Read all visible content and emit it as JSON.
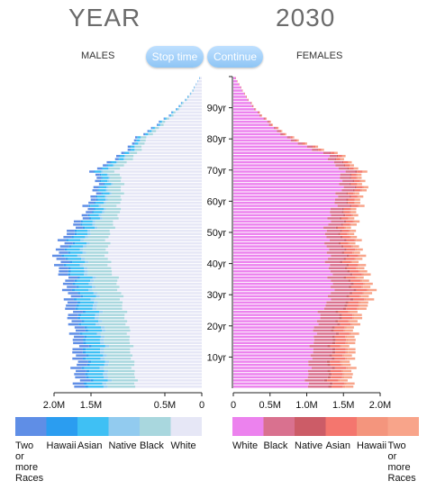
{
  "header": {
    "year_label": "YEAR",
    "year_value": "2030",
    "males_label": "MALES",
    "females_label": "FEMALES",
    "stop_button": "Stop time",
    "continue_button": "Continue"
  },
  "colors": {
    "button_bg": "#9dcff8"
  },
  "chart_data": {
    "type": "bar",
    "subtype": "population-pyramid-stacked",
    "year": "2030",
    "ages_per_bar": 1,
    "age_range": [
      0,
      100
    ],
    "age_ticks": [
      "10yr",
      "20yr",
      "30yr",
      "40yr",
      "50yr",
      "60yr",
      "70yr",
      "80yr",
      "90yr"
    ],
    "age_tick_values": [
      10,
      20,
      30,
      40,
      50,
      60,
      70,
      80,
      90
    ],
    "males": {
      "axis_ticks": [
        "2.0M",
        "1.5M",
        "0.5M",
        "0"
      ],
      "axis_tick_values": [
        2000000,
        1500000,
        500000,
        0
      ],
      "xlim": [
        2000000,
        0
      ],
      "stack_order": [
        "White",
        "Black",
        "Native",
        "Asian",
        "Hawaii",
        "Two or more Races"
      ],
      "series_colors": {
        "White": "#e6e7f6",
        "Black": "#a9d7de",
        "Native": "#92cbef",
        "Asian": "#3fc0f4",
        "Hawaii": "#2b9df0",
        "Two or more Races": "#5f8ee6"
      },
      "anchor_ages": [
        0,
        5,
        10,
        15,
        20,
        25,
        30,
        35,
        40,
        45,
        50,
        55,
        60,
        65,
        70,
        75,
        80,
        85,
        90,
        95,
        100
      ],
      "anchor_totals": [
        1700000,
        1720000,
        1720000,
        1730000,
        1760000,
        1820000,
        1830000,
        1860000,
        1980000,
        1950000,
        1830000,
        1620000,
        1530000,
        1420000,
        1470000,
        1090000,
        900000,
        590000,
        330000,
        140000,
        20000
      ],
      "anchor_white_share": [
        0.52,
        0.53,
        0.55,
        0.56,
        0.57,
        0.58,
        0.6,
        0.62,
        0.64,
        0.66,
        0.68,
        0.7,
        0.72,
        0.75,
        0.78,
        0.8,
        0.83,
        0.85,
        0.87,
        0.88,
        0.9
      ],
      "nonwhite_shares": {
        "Black": 0.45,
        "Native": 0.07,
        "Asian": 0.25,
        "Hawaii": 0.05,
        "Two or more Races": 0.18
      }
    },
    "females": {
      "axis_ticks": [
        "0",
        "0.5M",
        "1.0M",
        "1.5M",
        "2.0M"
      ],
      "axis_tick_values": [
        0,
        500000,
        1000000,
        1500000,
        2000000
      ],
      "xlim": [
        0,
        2000000
      ],
      "stack_order": [
        "White",
        "Black",
        "Native",
        "Asian",
        "Hawaii",
        "Two or more Races"
      ],
      "series_colors": {
        "White": "#ec82ee",
        "Black": "#d9718f",
        "Native": "#cc5c67",
        "Asian": "#f4766e",
        "Hawaii": "#f4957d",
        "Two or more Races": "#f8a48a"
      },
      "anchor_ages": [
        0,
        5,
        10,
        15,
        20,
        25,
        30,
        35,
        40,
        45,
        50,
        55,
        60,
        65,
        70,
        75,
        80,
        85,
        90,
        95,
        100
      ],
      "anchor_totals": [
        1610000,
        1620000,
        1630000,
        1650000,
        1680000,
        1770000,
        1920000,
        1850000,
        1770000,
        1740000,
        1650000,
        1680000,
        1740000,
        1800000,
        1750000,
        1460000,
        830000,
        520000,
        290000,
        140000,
        20000
      ],
      "anchor_white_share": [
        0.62,
        0.63,
        0.65,
        0.66,
        0.67,
        0.68,
        0.7,
        0.72,
        0.73,
        0.74,
        0.76,
        0.78,
        0.8,
        0.82,
        0.84,
        0.86,
        0.88,
        0.9,
        0.92,
        0.94,
        0.95
      ],
      "nonwhite_shares": {
        "Black": 0.45,
        "Native": 0.07,
        "Asian": 0.25,
        "Hawaii": 0.05,
        "Two or more Races": 0.18
      }
    },
    "legend": {
      "males": [
        {
          "label": "Two or more Races",
          "lines": [
            "Two",
            "or",
            "more",
            "Races"
          ]
        },
        {
          "label": "Hawaii",
          "lines": [
            "Hawaii"
          ]
        },
        {
          "label": "Asian",
          "lines": [
            "Asian"
          ]
        },
        {
          "label": "Native",
          "lines": [
            "Native"
          ]
        },
        {
          "label": "Black",
          "lines": [
            "Black"
          ]
        },
        {
          "label": "White",
          "lines": [
            "White"
          ]
        }
      ],
      "females": [
        {
          "label": "White",
          "lines": [
            "White"
          ]
        },
        {
          "label": "Black",
          "lines": [
            "Black"
          ]
        },
        {
          "label": "Native",
          "lines": [
            "Native"
          ]
        },
        {
          "label": "Asian",
          "lines": [
            "Asian"
          ]
        },
        {
          "label": "Hawaii",
          "lines": [
            "Hawaii"
          ]
        },
        {
          "label": "Two or more Races",
          "lines": [
            "Two",
            "or",
            "more",
            "Races"
          ]
        }
      ]
    }
  }
}
